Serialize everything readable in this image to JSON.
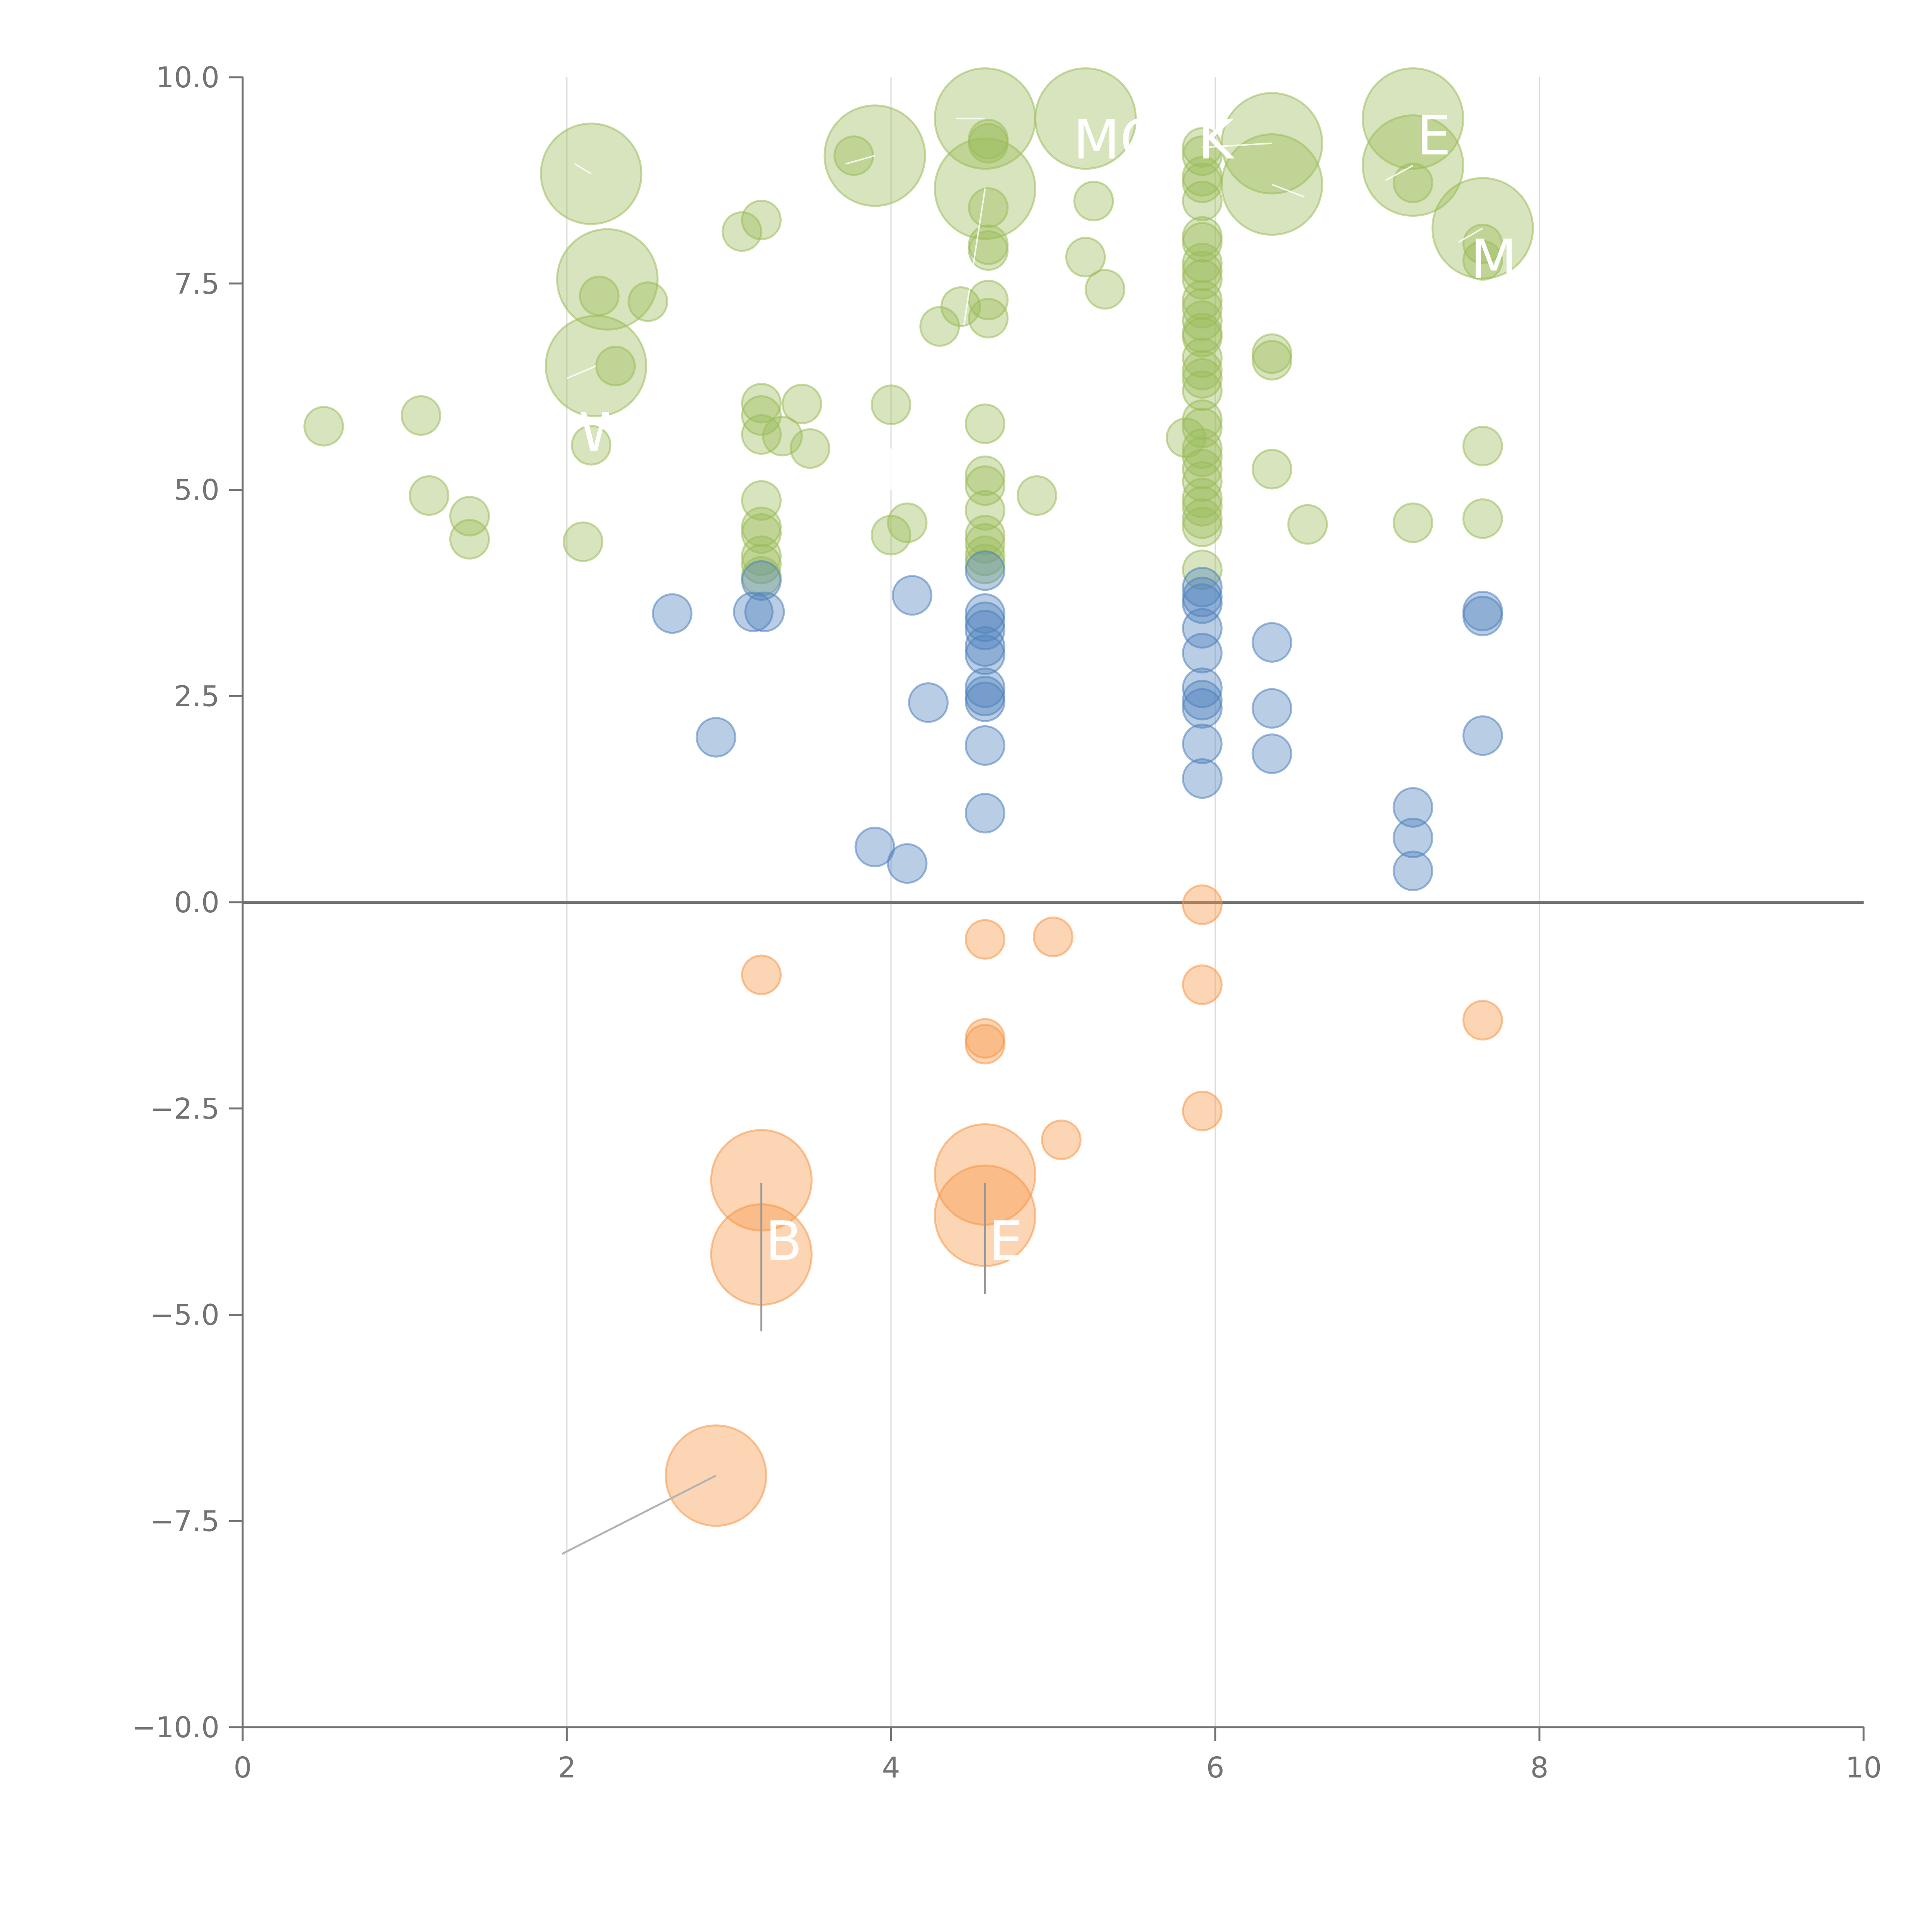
{
  "chart_data": {
    "type": "scatter",
    "title": "",
    "xlabel": "",
    "ylabel": "",
    "xlim": [
      0,
      10
    ],
    "ylim": [
      -10,
      10
    ],
    "x_ticks": [
      0,
      2,
      4,
      6,
      8,
      10
    ],
    "x_tick_labels": [
      "0",
      "2",
      "4",
      "6",
      "8",
      "10"
    ],
    "y_ticks": [
      10,
      7.5,
      5,
      2.5,
      0,
      -2.5,
      -5,
      -7.5,
      -10
    ],
    "y_tick_labels": [
      "10.0",
      "7.5",
      "5.0",
      "2.5",
      "0.0",
      "−2.5",
      "−5.0",
      "−7.5",
      "−10.0"
    ],
    "vertical_gridlines": [
      2,
      4,
      6,
      8
    ],
    "zero_line": 0,
    "series": [
      {
        "name": "green",
        "color": "#9bbb59",
        "points": [
          [
            0.5,
            5.77,
            1
          ],
          [
            1.1,
            5.9,
            1
          ],
          [
            1.15,
            4.93,
            1
          ],
          [
            1.4,
            4.68,
            1
          ],
          [
            1.4,
            4.4,
            1
          ],
          [
            2.1,
            4.37,
            1
          ],
          [
            2.15,
            5.54,
            1
          ],
          [
            2.2,
            7.35,
            1
          ],
          [
            2.3,
            6.5,
            1
          ],
          [
            2.5,
            7.28,
            1
          ],
          [
            2.15,
            8.83,
            2.6
          ],
          [
            2.25,
            7.55,
            2.6
          ],
          [
            2.18,
            6.5,
            2.6
          ],
          [
            3.08,
            8.13,
            1
          ],
          [
            3.2,
            8.27,
            1
          ],
          [
            3.2,
            6.05,
            1
          ],
          [
            3.2,
            5.9,
            1
          ],
          [
            3.2,
            5.67,
            1
          ],
          [
            3.33,
            5.65,
            1
          ],
          [
            3.45,
            6.04,
            1
          ],
          [
            3.5,
            5.5,
            1
          ],
          [
            3.2,
            4.87,
            1
          ],
          [
            3.2,
            4.55,
            1
          ],
          [
            3.2,
            4.47,
            1
          ],
          [
            3.2,
            4.2,
            1
          ],
          [
            3.2,
            4.1,
            1
          ],
          [
            3.2,
            3.95,
            1
          ],
          [
            3.77,
            9.05,
            1
          ],
          [
            3.9,
            9.05,
            2.6
          ],
          [
            4.0,
            6.03,
            1
          ],
          [
            4.0,
            4.45,
            1
          ],
          [
            4.1,
            4.6,
            1
          ],
          [
            4.3,
            6.98,
            1
          ],
          [
            4.43,
            7.22,
            1
          ],
          [
            4.58,
            9.5,
            2.6
          ],
          [
            4.58,
            8.65,
            2.6
          ],
          [
            4.6,
            9.2,
            1
          ],
          [
            4.6,
            9.25,
            1
          ],
          [
            4.6,
            8.42,
            1
          ],
          [
            4.6,
            7.97,
            1
          ],
          [
            4.6,
            7.9,
            1
          ],
          [
            4.6,
            7.3,
            1
          ],
          [
            4.6,
            7.08,
            1
          ],
          [
            4.58,
            5.8,
            1
          ],
          [
            4.58,
            5.17,
            1
          ],
          [
            4.58,
            5.05,
            1
          ],
          [
            4.58,
            4.75,
            1
          ],
          [
            4.58,
            4.45,
            1
          ],
          [
            4.58,
            4.35,
            1
          ],
          [
            4.58,
            4.2,
            1
          ],
          [
            4.58,
            4.1,
            1
          ],
          [
            4.9,
            4.93,
            1
          ],
          [
            5.2,
            9.5,
            2.6
          ],
          [
            5.2,
            7.82,
            1
          ],
          [
            5.25,
            8.5,
            1
          ],
          [
            5.32,
            7.43,
            1
          ],
          [
            5.92,
            9.15,
            1
          ],
          [
            5.92,
            9.05,
            1
          ],
          [
            5.92,
            8.8,
            1
          ],
          [
            5.92,
            8.72,
            1
          ],
          [
            5.92,
            8.5,
            1
          ],
          [
            5.92,
            8.07,
            1
          ],
          [
            5.92,
            8.0,
            1
          ],
          [
            5.92,
            7.75,
            1
          ],
          [
            5.92,
            7.65,
            1
          ],
          [
            5.92,
            7.55,
            1
          ],
          [
            5.92,
            7.3,
            1
          ],
          [
            5.92,
            7.2,
            1
          ],
          [
            5.92,
            7.05,
            1
          ],
          [
            5.92,
            6.9,
            1
          ],
          [
            5.92,
            6.85,
            1
          ],
          [
            5.92,
            6.6,
            1
          ],
          [
            5.92,
            6.45,
            1
          ],
          [
            5.92,
            6.35,
            1
          ],
          [
            5.92,
            6.2,
            1
          ],
          [
            5.92,
            5.85,
            1
          ],
          [
            5.92,
            5.75,
            1
          ],
          [
            5.82,
            5.63,
            1
          ],
          [
            5.92,
            5.5,
            1
          ],
          [
            5.92,
            5.4,
            1
          ],
          [
            5.92,
            5.25,
            1
          ],
          [
            5.92,
            5.1,
            1
          ],
          [
            5.92,
            4.9,
            1
          ],
          [
            5.92,
            4.8,
            1
          ],
          [
            5.92,
            4.65,
            1
          ],
          [
            5.92,
            4.55,
            1
          ],
          [
            5.92,
            4.03,
            1
          ],
          [
            6.35,
            9.2,
            2.6
          ],
          [
            6.35,
            8.7,
            2.6
          ],
          [
            6.35,
            6.65,
            1
          ],
          [
            6.35,
            6.57,
            1
          ],
          [
            6.35,
            5.25,
            1
          ],
          [
            6.57,
            4.58,
            1
          ],
          [
            7.22,
            9.5,
            2.6
          ],
          [
            7.22,
            8.93,
            2.6
          ],
          [
            7.22,
            8.72,
            1
          ],
          [
            7.22,
            4.6,
            1
          ],
          [
            7.65,
            8.17,
            2.6
          ],
          [
            7.65,
            7.98,
            1
          ],
          [
            7.65,
            7.78,
            1
          ],
          [
            7.65,
            5.53,
            1
          ],
          [
            7.65,
            4.65,
            1
          ]
        ]
      },
      {
        "name": "blue",
        "color": "#4f81bd",
        "points": [
          [
            2.65,
            3.5,
            1
          ],
          [
            2.92,
            2.0,
            1
          ],
          [
            3.15,
            3.52,
            1
          ],
          [
            3.22,
            3.52,
            1
          ],
          [
            3.2,
            3.9,
            1
          ],
          [
            3.9,
            0.67,
            1
          ],
          [
            4.1,
            0.47,
            1
          ],
          [
            4.13,
            3.72,
            1
          ],
          [
            4.23,
            2.42,
            1
          ],
          [
            4.58,
            4.02,
            1
          ],
          [
            4.58,
            3.5,
            1
          ],
          [
            4.58,
            3.4,
            1
          ],
          [
            4.58,
            3.3,
            1
          ],
          [
            4.58,
            3.1,
            1
          ],
          [
            4.58,
            3.0,
            1
          ],
          [
            4.58,
            2.6,
            1
          ],
          [
            4.58,
            2.5,
            1
          ],
          [
            4.58,
            2.43,
            1
          ],
          [
            4.58,
            1.9,
            1
          ],
          [
            4.58,
            1.08,
            1
          ],
          [
            5.92,
            3.82,
            1
          ],
          [
            5.92,
            3.7,
            1
          ],
          [
            5.92,
            3.62,
            1
          ],
          [
            5.92,
            3.32,
            1
          ],
          [
            5.92,
            3.02,
            1
          ],
          [
            5.92,
            2.6,
            1
          ],
          [
            5.92,
            2.45,
            1
          ],
          [
            5.92,
            2.35,
            1
          ],
          [
            5.92,
            1.92,
            1
          ],
          [
            5.92,
            1.5,
            1
          ],
          [
            6.35,
            3.15,
            1
          ],
          [
            6.35,
            2.35,
            1
          ],
          [
            6.35,
            1.8,
            1
          ],
          [
            7.22,
            1.15,
            1
          ],
          [
            7.22,
            0.78,
            1
          ],
          [
            7.22,
            0.38,
            1
          ],
          [
            7.65,
            3.53,
            1
          ],
          [
            7.65,
            3.47,
            1
          ],
          [
            7.65,
            2.02,
            1
          ]
        ]
      },
      {
        "name": "orange",
        "color": "#f79646",
        "points": [
          [
            2.92,
            -6.95,
            2.6
          ],
          [
            3.2,
            -0.88,
            1
          ],
          [
            3.2,
            -3.37,
            2.6
          ],
          [
            3.2,
            -4.27,
            2.6
          ],
          [
            4.58,
            -0.45,
            1
          ],
          [
            4.58,
            -1.65,
            1
          ],
          [
            4.58,
            -1.72,
            1
          ],
          [
            4.58,
            -3.3,
            2.6
          ],
          [
            4.58,
            -3.8,
            2.6
          ],
          [
            5.0,
            -0.42,
            1
          ],
          [
            5.05,
            -2.88,
            1
          ],
          [
            5.92,
            -0.03,
            1
          ],
          [
            5.92,
            -1.0,
            1
          ],
          [
            5.92,
            -2.53,
            1
          ],
          [
            7.65,
            -1.43,
            1
          ]
        ]
      }
    ],
    "annotations": [
      {
        "text": "B",
        "x": 3.2,
        "y": -4.1,
        "line": [
          [
            3.2,
            -3.4
          ],
          [
            3.2,
            -5.2
          ]
        ]
      },
      {
        "text": "E",
        "x": 4.58,
        "y": -4.1,
        "line": [
          [
            4.58,
            -3.4
          ],
          [
            4.58,
            -4.75
          ]
        ]
      },
      {
        "text": "E",
        "x": 7.22,
        "y": 9.3,
        "line": []
      },
      {
        "text": "MO",
        "x": 5.1,
        "y": 9.25,
        "line": []
      },
      {
        "text": "K",
        "x": 5.87,
        "y": 9.25,
        "line": []
      },
      {
        "text": "M",
        "x": 7.55,
        "y": 7.8,
        "line": []
      },
      {
        "text": "W",
        "x": 2.05,
        "y": 5.7,
        "line": []
      }
    ],
    "leader_lines": [
      [
        [
          2.92,
          -6.95
        ],
        [
          1.97,
          -7.9
        ]
      ],
      [
        [
          2.15,
          8.83
        ],
        [
          2.05,
          8.95
        ]
      ],
      [
        [
          3.9,
          9.05
        ],
        [
          3.72,
          8.95
        ]
      ],
      [
        [
          4.58,
          9.5
        ],
        [
          4.4,
          9.5
        ]
      ],
      [
        [
          4.58,
          8.65
        ],
        [
          4.45,
          7.0
        ]
      ],
      [
        [
          5.92,
          9.15
        ],
        [
          6.35,
          9.2
        ]
      ],
      [
        [
          6.35,
          8.7
        ],
        [
          6.55,
          8.55
        ]
      ],
      [
        [
          7.22,
          8.93
        ],
        [
          7.05,
          8.75
        ]
      ],
      [
        [
          7.65,
          8.17
        ],
        [
          7.5,
          8.0
        ]
      ],
      [
        [
          2.18,
          6.5
        ],
        [
          2.0,
          6.35
        ]
      ],
      [
        [
          4.0,
          5.0
        ],
        [
          4.0,
          5.5
        ]
      ]
    ]
  }
}
